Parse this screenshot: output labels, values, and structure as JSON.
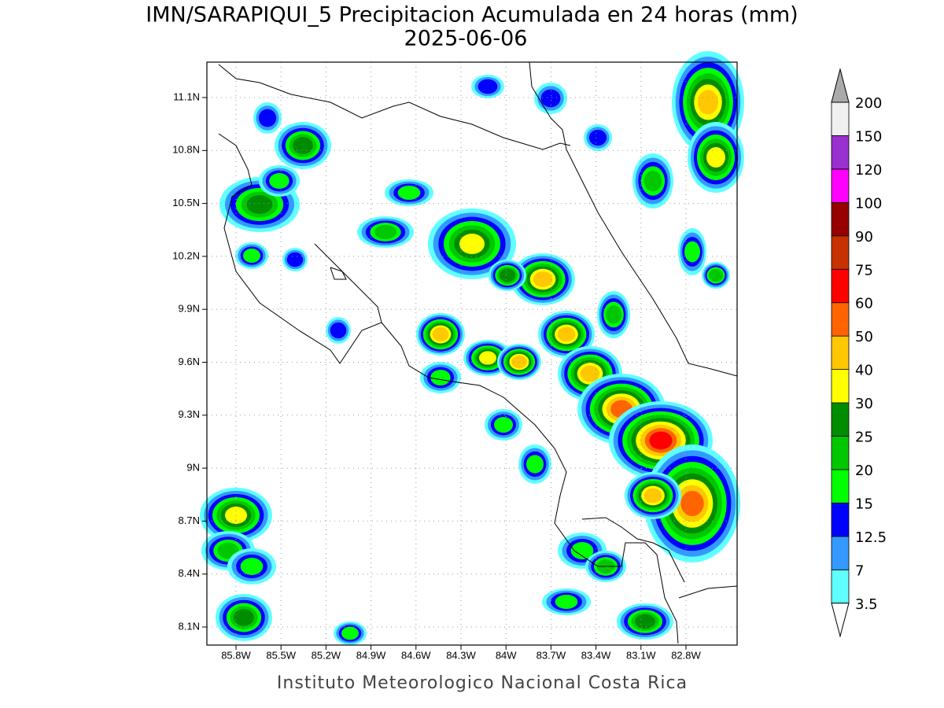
{
  "title": "IMN/SARAPIQUI_5 Precipitacion Acumulada en 24 horas (mm)",
  "subtitle": "2025-06-06",
  "footer": "Instituto Meteorologico Nacional Costa Rica",
  "lon_ticks": [
    "85.8W",
    "85.5W",
    "85.2W",
    "84.9W",
    "84.6W",
    "84.3W",
    "84W",
    "83.7W",
    "83.4W",
    "83.1W",
    "82.8W"
  ],
  "lat_ticks": [
    "11.1N",
    "10.8N",
    "10.5N",
    "10.2N",
    "9.9N",
    "9.6N",
    "9.3N",
    "9N",
    "8.7N",
    "8.4N",
    "8.1N"
  ],
  "colorbar": {
    "levels": [
      3.5,
      7,
      12.5,
      15,
      20,
      25,
      30,
      40,
      50,
      60,
      75,
      90,
      100,
      120,
      150,
      200
    ],
    "colors": [
      "#5fffff",
      "#3399ff",
      "#0000ff",
      "#00ff00",
      "#00c800",
      "#008c00",
      "#ffff00",
      "#ffc800",
      "#ff6400",
      "#ff0000",
      "#c83200",
      "#960000",
      "#ff00ff",
      "#9b30d0",
      "#f0f0f0"
    ],
    "under_color": "#ffffff",
    "over_color": "#aaaaaa"
  }
}
